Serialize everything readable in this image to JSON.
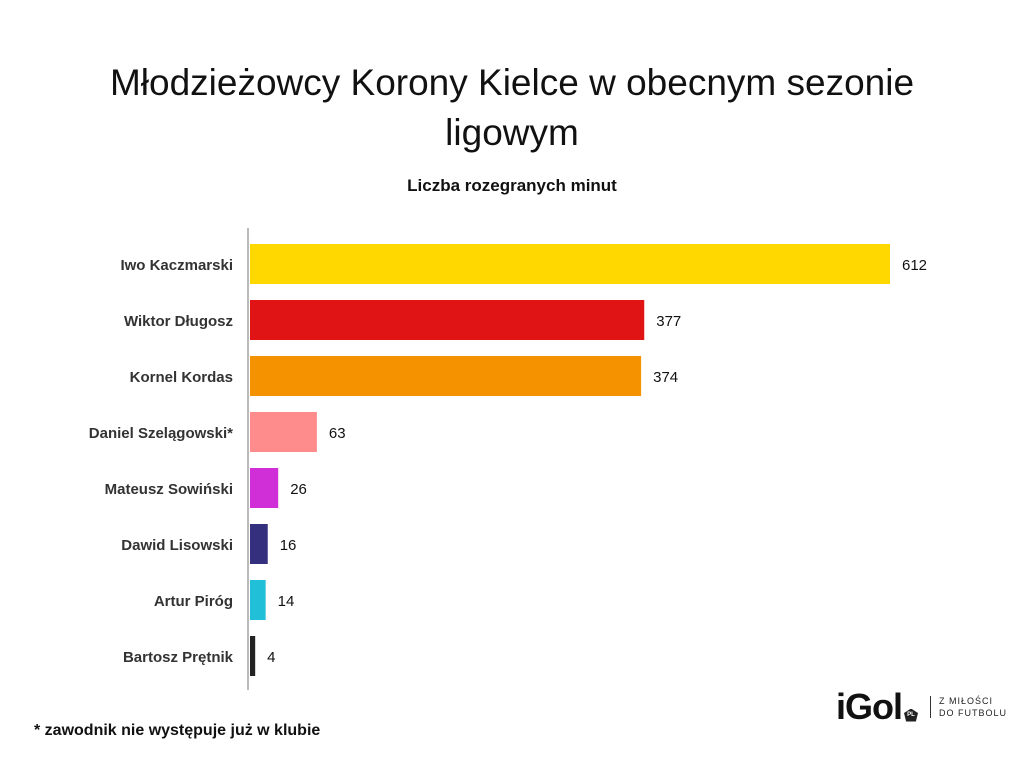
{
  "chart_data": {
    "type": "bar",
    "orientation": "horizontal",
    "title": "Młodzieżowcy Korony Kielce w obecnym sezonie ligowym",
    "subtitle": "Liczba rozegranych minut",
    "categories": [
      "Iwo Kaczmarski",
      "Wiktor Długosz",
      "Kornel Kordas",
      "Daniel Szelągowski*",
      "Mateusz Sowiński",
      "Dawid Lisowski",
      "Artur Piróg",
      "Bartosz Prętnik"
    ],
    "values": [
      612,
      377,
      374,
      63,
      26,
      16,
      14,
      4
    ],
    "colors": [
      "#FFD800",
      "#E01414",
      "#F59200",
      "#FF8C8C",
      "#D02ED6",
      "#35307D",
      "#22BFD8",
      "#222222"
    ],
    "xlabel": "",
    "ylabel": "",
    "xlim": [
      0,
      612
    ],
    "grid": false
  },
  "footnote": "* zawodnik nie występuje już w klubie",
  "logo": {
    "name": "iGol",
    "badge": "PL",
    "tagline_1": "Z MIŁOŚCI",
    "tagline_2": "DO FUTBOLU"
  }
}
